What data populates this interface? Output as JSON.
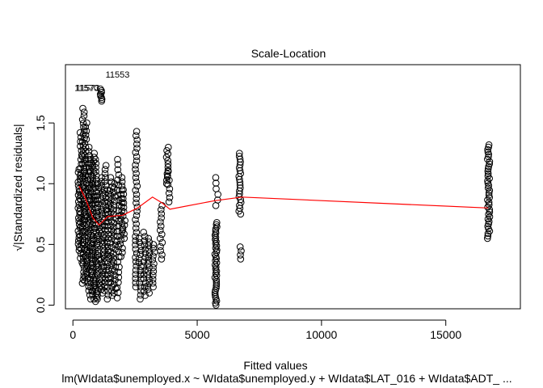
{
  "chart_data": {
    "type": "scatter",
    "title": "Scale-Location",
    "xlabel": "Fitted values",
    "ylabel": "√|Standardized residuals|",
    "subtitle": "lm(WIdata$unemployed.x ~ WIdata$unemployed.y + WIdata$LAT_016 + WIdata$ADT_ ...",
    "xlim": [
      -300,
      18000
    ],
    "ylim": [
      -0.03,
      1.98
    ],
    "x_ticks": [
      0,
      5000,
      10000,
      15000
    ],
    "x_tick_labels": [
      "0",
      "5000",
      "10000",
      "15000"
    ],
    "y_ticks": [
      0.0,
      0.5,
      1.0,
      1.5
    ],
    "y_tick_labels": [
      "0.0",
      "0.5",
      "1.0",
      "1.5"
    ],
    "grid": false,
    "point_clusters": [
      {
        "x": 250,
        "y_min": 0.45,
        "y_max": 1.12,
        "n": 26
      },
      {
        "x": 330,
        "y_min": 0.35,
        "y_max": 1.42,
        "n": 30
      },
      {
        "x": 420,
        "y_min": 0.18,
        "y_max": 1.62,
        "n": 48
      },
      {
        "x": 520,
        "y_min": 0.2,
        "y_max": 1.5,
        "n": 40
      },
      {
        "x": 620,
        "y_min": 0.12,
        "y_max": 1.3,
        "n": 36
      },
      {
        "x": 720,
        "y_min": 0.05,
        "y_max": 1.2,
        "n": 36
      },
      {
        "x": 820,
        "y_min": 0.05,
        "y_max": 1.25,
        "n": 38
      },
      {
        "x": 920,
        "y_min": 0.03,
        "y_max": 1.2,
        "n": 36
      },
      {
        "x": 1020,
        "y_min": 0.05,
        "y_max": 1.0,
        "n": 30
      },
      {
        "x": 1150,
        "y_min": 1.68,
        "y_max": 1.78,
        "n": 8
      },
      {
        "x": 1180,
        "y_min": 0.1,
        "y_max": 1.05,
        "n": 32
      },
      {
        "x": 1300,
        "y_min": 0.12,
        "y_max": 1.15,
        "n": 32
      },
      {
        "x": 1420,
        "y_min": 0.05,
        "y_max": 0.95,
        "n": 28
      },
      {
        "x": 1540,
        "y_min": 0.08,
        "y_max": 1.05,
        "n": 28
      },
      {
        "x": 1680,
        "y_min": 0.1,
        "y_max": 1.0,
        "n": 26
      },
      {
        "x": 1820,
        "y_min": 0.06,
        "y_max": 1.2,
        "n": 28
      },
      {
        "x": 1950,
        "y_min": 0.4,
        "y_max": 1.05,
        "n": 20
      },
      {
        "x": 2050,
        "y_min": 0.55,
        "y_max": 0.95,
        "n": 12
      },
      {
        "x": 2550,
        "y_min": 0.15,
        "y_max": 1.43,
        "n": 38
      },
      {
        "x": 2700,
        "y_min": 0.05,
        "y_max": 0.55,
        "n": 16
      },
      {
        "x": 2880,
        "y_min": 0.08,
        "y_max": 0.6,
        "n": 16
      },
      {
        "x": 3050,
        "y_min": 0.1,
        "y_max": 0.55,
        "n": 16
      },
      {
        "x": 3250,
        "y_min": 0.15,
        "y_max": 0.5,
        "n": 12
      },
      {
        "x": 3550,
        "y_min": 0.38,
        "y_max": 0.82,
        "n": 14
      },
      {
        "x": 3800,
        "y_min": 1.0,
        "y_max": 1.3,
        "n": 12
      },
      {
        "x": 3850,
        "y_min": 0.85,
        "y_max": 1.1,
        "n": 8
      },
      {
        "x": 5750,
        "y_min": 0.0,
        "y_max": 0.68,
        "n": 40
      },
      {
        "x": 5790,
        "y_min": 0.82,
        "y_max": 1.05,
        "n": 6
      },
      {
        "x": 6720,
        "y_min": 0.75,
        "y_max": 1.25,
        "n": 22
      },
      {
        "x": 6760,
        "y_min": 0.38,
        "y_max": 0.48,
        "n": 4
      },
      {
        "x": 16720,
        "y_min": 0.55,
        "y_max": 1.32,
        "n": 40
      }
    ],
    "smooth_line": {
      "x": [
        250,
        500,
        800,
        1050,
        1400,
        2000,
        2600,
        3200,
        3600,
        3900,
        5700,
        6800,
        16700
      ],
      "y": [
        0.98,
        0.88,
        0.72,
        0.66,
        0.73,
        0.74,
        0.8,
        0.89,
        0.84,
        0.79,
        0.86,
        0.89,
        0.8
      ]
    },
    "annotations": [
      {
        "label": "11553",
        "x": 1150,
        "y": 1.9
      },
      {
        "label": "11570",
        "x": 550,
        "y": 1.79
      },
      {
        "label": "11573",
        "x": 600,
        "y": 1.79
      }
    ]
  }
}
